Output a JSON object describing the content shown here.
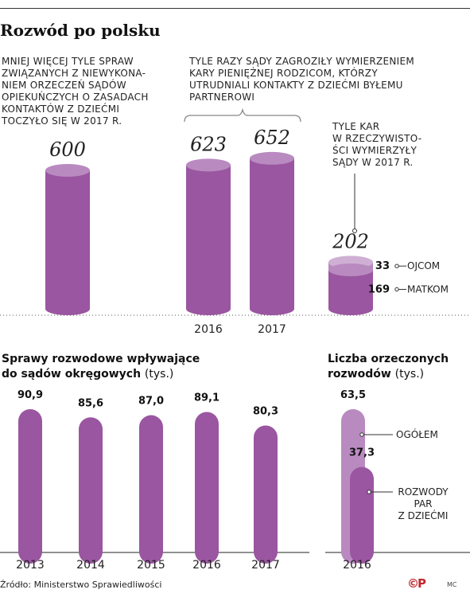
{
  "title": "Rozwód po polsku",
  "colors": {
    "bar": "#9a56a0",
    "bar_light": "#b98ac0",
    "bar_top": "#b98ac0",
    "bar_top_light": "#cfb0d4",
    "line": "#222222"
  },
  "panel_top": {
    "note_left": "MNIEJ WIĘCEJ TYLE SPRAW ZWIĄZANYCH Z NIEWYKONA-NIEM ORZECZEŃ SĄDÓW OPIEKUŃCZYCH O ZASADACH KONTAKTÓW Z DZIEĆMI TOCZYŁO SIĘ W 2017 R.",
    "note_left_lines": [
      "MNIEJ WIĘCEJ TYLE SPRAW",
      "ZWIĄZANYCH Z NIEWYKONA-",
      "NIEM ORZECZEŃ SĄDÓW",
      "OPIEKUŃCZYCH O ZASADACH",
      "KONTAKTÓW Z DZIEĆMI",
      "TOCZYŁO SIĘ W 2017 R."
    ],
    "note_mid_lines": [
      "TYLE RAZY SĄDY ZAGROZIŁY WYMIERZENIEM",
      "KARY PIENIĘŻNEJ RODZICOM, KTÓRZY",
      "UTRUDNIALI KONTAKTY Z DZIEĆMI BYŁEMU",
      "PARTNEROWI"
    ],
    "note_right_lines": [
      "TYLE KAR",
      "W RZECZYWISTO-",
      "ŚCI WYMIERZYŁY",
      "SĄDY W 2017 R."
    ]
  },
  "chart_data": [
    {
      "type": "bar",
      "title": "",
      "categories": [
        "",
        "2016",
        "2017",
        ""
      ],
      "values": [
        600,
        623,
        652,
        202
      ],
      "value_labels": [
        "600",
        "623",
        "652",
        "202"
      ],
      "stack": {
        "total": 202,
        "segments": [
          {
            "name": "MATKOM",
            "value": 169,
            "label": "169"
          },
          {
            "name": "OJCOM",
            "value": 33,
            "label": "33"
          }
        ]
      }
    },
    {
      "type": "bar",
      "title": "Sprawy rozwodowe wpływające do sądów okręgowych",
      "title_lines": [
        "Sprawy rozwodowe wpływające",
        "do sądów okręgowych"
      ],
      "unit": "(tys.)",
      "categories": [
        "2013",
        "2014",
        "2015",
        "2016",
        "2017"
      ],
      "values": [
        90.9,
        85.6,
        87.0,
        89.1,
        80.3
      ],
      "value_labels": [
        "90,9",
        "85,6",
        "87,0",
        "89,1",
        "80,3"
      ]
    },
    {
      "type": "bar",
      "title": "Liczba orzeczonych rozwodów",
      "title_lines": [
        "Liczba orzeczonych",
        "rozwodów"
      ],
      "unit": "(tys.)",
      "categories": [
        "2016"
      ],
      "series": [
        {
          "name": "OGÓŁEM",
          "values": [
            63.5
          ],
          "value_labels": [
            "63,5"
          ]
        },
        {
          "name": "ROZWODY PAR Z DZIEĆMI",
          "values": [
            37.3
          ],
          "value_labels": [
            "37,3"
          ],
          "name_lines": [
            "ROZWODY",
            "PAR",
            "Z DZIEĆMI"
          ]
        }
      ]
    }
  ],
  "source": "Źródło: Ministerstwo Sprawiedliwości",
  "logo": "©P",
  "credit": "MC"
}
